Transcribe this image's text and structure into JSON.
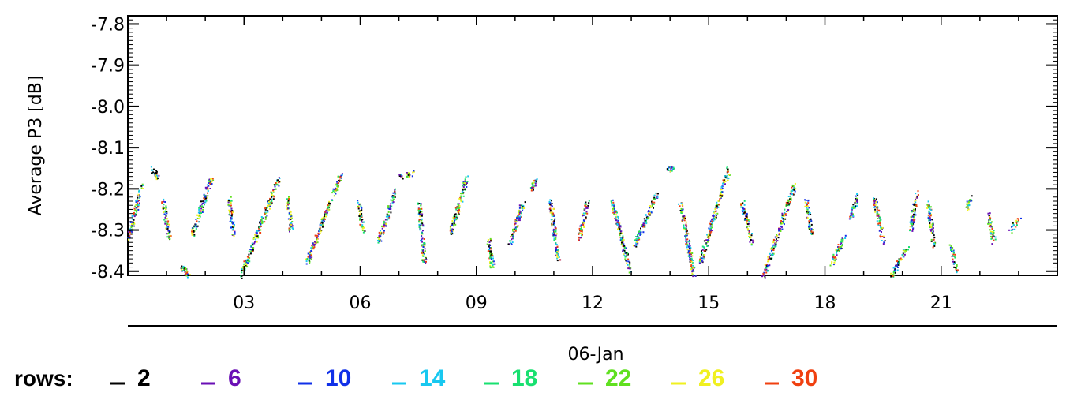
{
  "chart_data": {
    "type": "scatter",
    "ylabel": "Average P3 [dB]",
    "xlabel": "06-Jan",
    "ylim": [
      -8.41,
      -7.78
    ],
    "y_ticks": [
      "-7.8",
      "-7.9",
      "-8.0",
      "-8.1",
      "-8.2",
      "-8.3",
      "-8.4"
    ],
    "y_tick_values": [
      -7.8,
      -7.9,
      -8.0,
      -8.1,
      -8.2,
      -8.3,
      -8.4
    ],
    "xlim": [
      0,
      24
    ],
    "x_ticks": [
      "03",
      "06",
      "09",
      "12",
      "15",
      "18",
      "21"
    ],
    "x_tick_values": [
      3,
      6,
      9,
      12,
      15,
      18,
      21
    ],
    "legend_prefix": "rows:",
    "legend_position": "bottom",
    "series": [
      {
        "name": "2",
        "color": "#000000"
      },
      {
        "name": "6",
        "color": "#6a0fb5"
      },
      {
        "name": "10",
        "color": "#1030e8"
      },
      {
        "name": "14",
        "color": "#18c8f0"
      },
      {
        "name": "18",
        "color": "#18e070"
      },
      {
        "name": "22",
        "color": "#60e020"
      },
      {
        "name": "26",
        "color": "#f0f020"
      },
      {
        "name": "30",
        "color": "#f04010"
      }
    ],
    "segments": [
      {
        "x0": 0.0,
        "y0": -8.32,
        "x1": 0.35,
        "y1": -8.19
      },
      {
        "x0": 0.6,
        "y0": -8.15,
        "x1": 0.75,
        "y1": -8.17
      },
      {
        "x0": 0.9,
        "y0": -8.23,
        "x1": 1.05,
        "y1": -8.32
      },
      {
        "x0": 1.4,
        "y0": -8.39,
        "x1": 1.55,
        "y1": -8.41
      },
      {
        "x0": 1.65,
        "y0": -8.31,
        "x1": 2.15,
        "y1": -8.17
      },
      {
        "x0": 2.6,
        "y0": -8.22,
        "x1": 2.7,
        "y1": -8.31
      },
      {
        "x0": 2.9,
        "y0": -8.41,
        "x1": 3.9,
        "y1": -8.17
      },
      {
        "x0": 4.1,
        "y0": -8.22,
        "x1": 4.2,
        "y1": -8.3
      },
      {
        "x0": 4.6,
        "y0": -8.38,
        "x1": 5.5,
        "y1": -8.16
      },
      {
        "x0": 5.95,
        "y0": -8.23,
        "x1": 6.05,
        "y1": -8.3
      },
      {
        "x0": 6.45,
        "y0": -8.33,
        "x1": 6.9,
        "y1": -8.2
      },
      {
        "x0": 7.0,
        "y0": -8.17,
        "x1": 7.35,
        "y1": -8.16
      },
      {
        "x0": 7.5,
        "y0": -8.23,
        "x1": 7.65,
        "y1": -8.38
      },
      {
        "x0": 8.3,
        "y0": -8.31,
        "x1": 8.75,
        "y1": -8.17
      },
      {
        "x0": 9.3,
        "y0": -8.32,
        "x1": 9.4,
        "y1": -8.39
      },
      {
        "x0": 9.85,
        "y0": -8.33,
        "x1": 10.2,
        "y1": -8.23
      },
      {
        "x0": 10.4,
        "y0": -8.2,
        "x1": 10.5,
        "y1": -8.18
      },
      {
        "x0": 10.9,
        "y0": -8.23,
        "x1": 11.1,
        "y1": -8.37
      },
      {
        "x0": 11.65,
        "y0": -8.32,
        "x1": 11.85,
        "y1": -8.23
      },
      {
        "x0": 12.5,
        "y0": -8.23,
        "x1": 12.95,
        "y1": -8.4
      },
      {
        "x0": 13.05,
        "y0": -8.34,
        "x1": 13.65,
        "y1": -8.21
      },
      {
        "x0": 13.95,
        "y0": -8.15,
        "x1": 14.05,
        "y1": -8.15
      },
      {
        "x0": 14.25,
        "y0": -8.23,
        "x1": 14.6,
        "y1": -8.41
      },
      {
        "x0": 14.75,
        "y0": -8.38,
        "x1": 15.5,
        "y1": -8.15
      },
      {
        "x0": 15.85,
        "y0": -8.23,
        "x1": 16.1,
        "y1": -8.33
      },
      {
        "x0": 16.4,
        "y0": -8.41,
        "x1": 17.2,
        "y1": -8.19
      },
      {
        "x0": 17.5,
        "y0": -8.23,
        "x1": 17.65,
        "y1": -8.31
      },
      {
        "x0": 18.15,
        "y0": -8.38,
        "x1": 18.5,
        "y1": -8.31
      },
      {
        "x0": 18.65,
        "y0": -8.27,
        "x1": 18.85,
        "y1": -8.21
      },
      {
        "x0": 19.25,
        "y0": -8.22,
        "x1": 19.5,
        "y1": -8.33
      },
      {
        "x0": 19.7,
        "y0": -8.41,
        "x1": 20.1,
        "y1": -8.34
      },
      {
        "x0": 20.2,
        "y0": -8.3,
        "x1": 20.35,
        "y1": -8.21
      },
      {
        "x0": 20.65,
        "y0": -8.23,
        "x1": 20.8,
        "y1": -8.34
      },
      {
        "x0": 21.25,
        "y0": -8.34,
        "x1": 21.4,
        "y1": -8.4
      },
      {
        "x0": 21.65,
        "y0": -8.25,
        "x1": 21.75,
        "y1": -8.22
      },
      {
        "x0": 22.2,
        "y0": -8.26,
        "x1": 22.35,
        "y1": -8.33
      },
      {
        "x0": 22.75,
        "y0": -8.3,
        "x1": 23.0,
        "y1": -8.27
      }
    ]
  }
}
